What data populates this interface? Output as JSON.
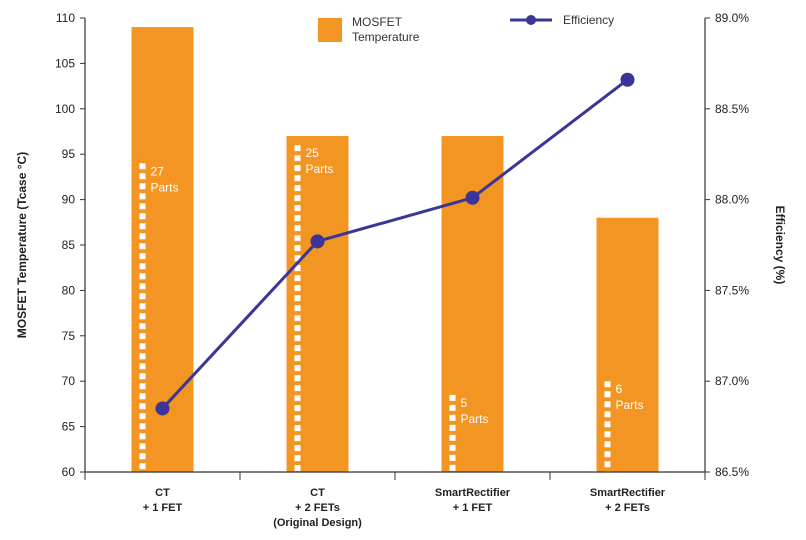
{
  "chart_data": {
    "type": "bar",
    "categories": [
      [
        "CT",
        "+ 1 FET"
      ],
      [
        "CT",
        "+ 2 FETs",
        "(Original Design)"
      ],
      [
        "SmartRectifier",
        "+ 1 FET"
      ],
      [
        "SmartRectifier",
        "+ 2 FETs"
      ]
    ],
    "ylabel": "MOSFET Temperature (Tcase °C)",
    "y2label": "Efficiency (%)",
    "ylim": [
      60,
      110
    ],
    "y2lim": [
      86.5,
      89.0
    ],
    "yticks": [
      "110",
      "105",
      "100",
      "95",
      "90",
      "85",
      "80",
      "75",
      "70",
      "65",
      "60"
    ],
    "y2ticks": [
      "89.0%",
      "88.5%",
      "88.0%",
      "87.5%",
      "87.0%",
      "86.5%"
    ],
    "legend": {
      "bars": [
        "MOSFET",
        "Temperature"
      ],
      "line": "Efficiency"
    },
    "series": [
      {
        "name": "MOSFET Temperature",
        "kind": "bar",
        "axis": "left",
        "values": [
          109,
          97,
          97,
          88
        ]
      },
      {
        "name": "Efficiency",
        "kind": "line",
        "axis": "right",
        "values": [
          86.85,
          87.77,
          88.01,
          88.66
        ]
      }
    ],
    "part_counts": [
      {
        "value": 94,
        "label": [
          "27",
          "Parts"
        ]
      },
      {
        "value": 96,
        "label": [
          "25",
          "Parts"
        ]
      },
      {
        "value": 68.5,
        "label": [
          "5",
          "Parts"
        ]
      },
      {
        "value": 70,
        "label": [
          "6",
          "Parts"
        ]
      }
    ],
    "colors": {
      "bar": "#f39523",
      "line": "#3a3596",
      "dash": "#ffffff",
      "axis": "#333333"
    }
  }
}
